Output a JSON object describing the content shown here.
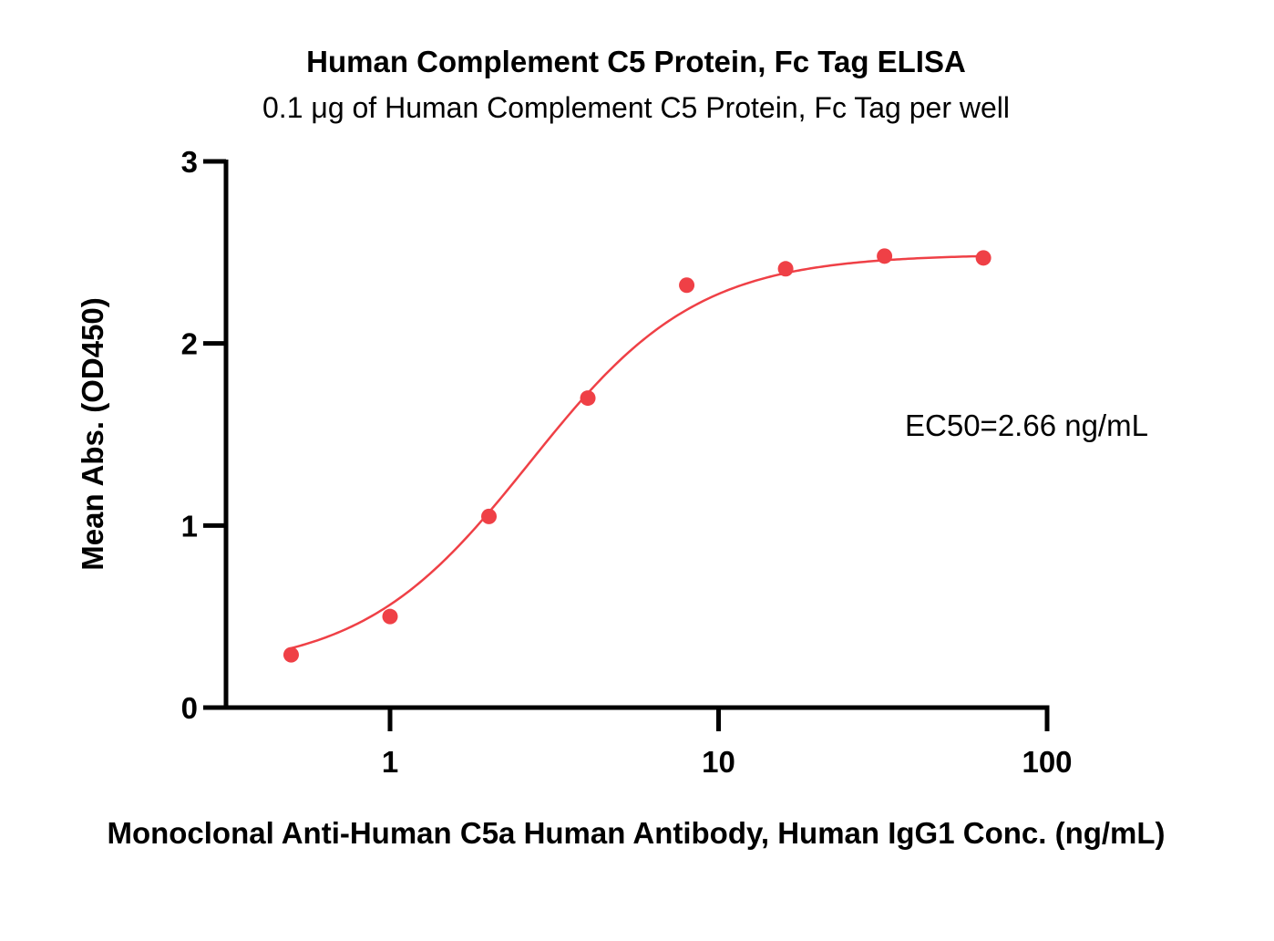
{
  "chart_data": {
    "type": "scatter",
    "title": "Human Complement C5 Protein, Fc Tag ELISA",
    "subtitle": "0.1 μg of Human Complement C5 Protein, Fc Tag per well",
    "xlabel": "Monoclonal Anti-Human C5a Human Antibody, Human IgG1 Conc. (ng/mL)",
    "ylabel": "Mean Abs. (OD450)",
    "x_scale": "log",
    "xlim": [
      0.3,
      100
    ],
    "ylim": [
      0,
      3
    ],
    "x_ticks": [
      {
        "value": 1,
        "label": "1"
      },
      {
        "value": 10,
        "label": "10"
      },
      {
        "value": 100,
        "label": "100"
      }
    ],
    "y_ticks": [
      {
        "value": 0,
        "label": "0"
      },
      {
        "value": 1,
        "label": "1"
      },
      {
        "value": 2,
        "label": "2"
      },
      {
        "value": 3,
        "label": "3"
      }
    ],
    "grid": false,
    "color": "#ef4046",
    "series": [
      {
        "x": [
          0.5,
          1,
          2,
          4,
          8,
          16,
          32,
          64
        ],
        "y": [
          0.29,
          0.5,
          1.05,
          1.7,
          2.32,
          2.41,
          2.48,
          2.47
        ]
      }
    ],
    "fit_curve": {
      "model": "4PL",
      "bottom": 0.2,
      "top": 2.49,
      "ec50": 2.66,
      "hill": 1.7
    },
    "annotations": [
      {
        "text": "EC50=2.66 ng/mL"
      }
    ]
  }
}
